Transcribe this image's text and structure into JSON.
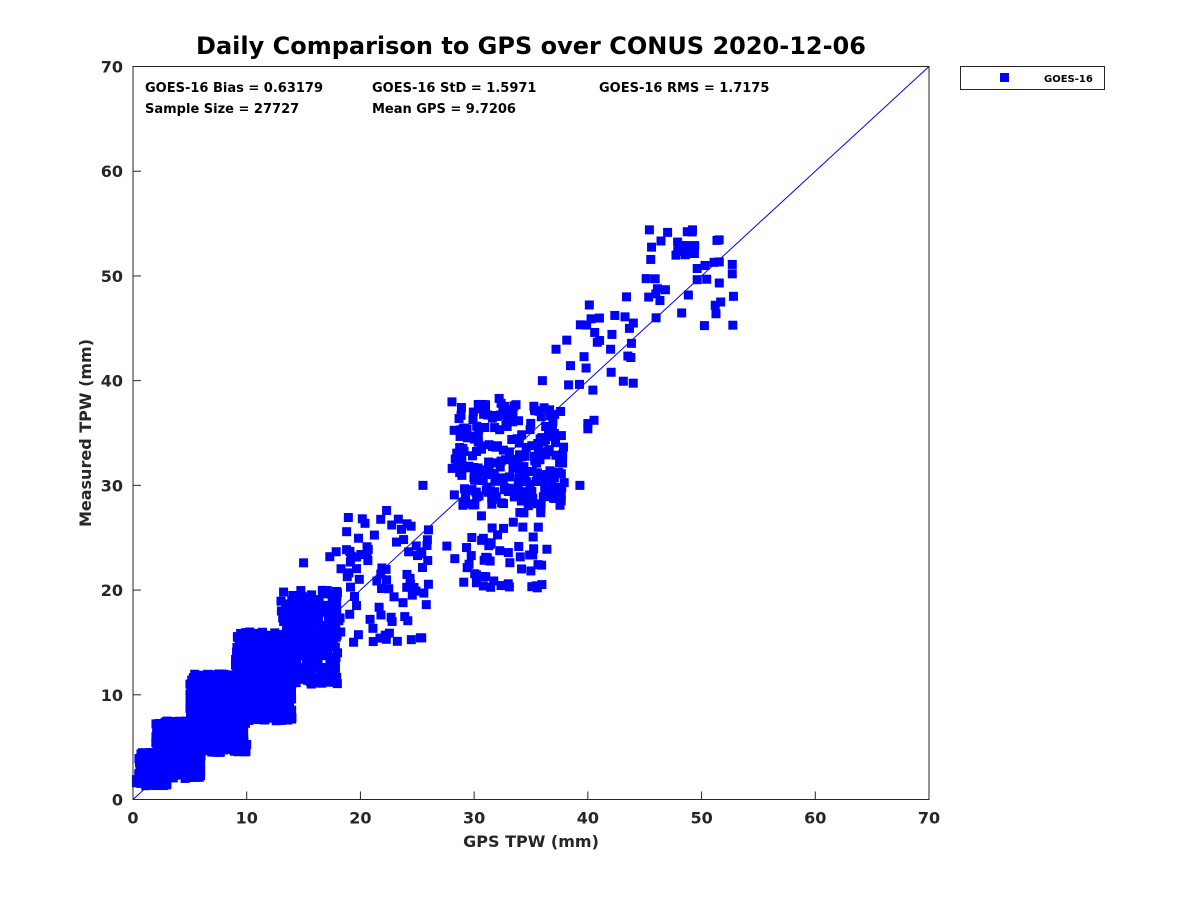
{
  "chart_data": {
    "type": "scatter",
    "title": "Daily Comparison to GPS over CONUS 2020-12-06",
    "xlabel": "GPS TPW (mm)",
    "ylabel": "Measured TPW (mm)",
    "xlim": [
      0,
      70
    ],
    "ylim": [
      0,
      70
    ],
    "xticks": [
      0,
      10,
      20,
      30,
      40,
      50,
      60,
      70
    ],
    "yticks": [
      0,
      10,
      20,
      30,
      40,
      50,
      60,
      70
    ],
    "xtick_labels": [
      "0",
      "10",
      "20",
      "30",
      "40",
      "50",
      "60",
      "70"
    ],
    "ytick_labels": [
      "0",
      "10",
      "20",
      "30",
      "40",
      "50",
      "60",
      "70"
    ],
    "grid": false,
    "legend_position": "outside-top-right",
    "marker_color": "#0000ff",
    "reference_line": {
      "type": "one-to-one",
      "from": [
        0,
        0
      ],
      "to": [
        70,
        70
      ],
      "color": "#0000ff"
    },
    "annotations": {
      "bias": "GOES-16 Bias = 0.63179",
      "std": "GOES-16 StD = 1.5971",
      "rms": "GOES-16 RMS = 1.7175",
      "sample_size": "Sample Size = 27727",
      "mean_gps": "Mean GPS = 9.7206"
    },
    "series": [
      {
        "name": "GOES-16",
        "color": "#0000ff",
        "sample_size": 27727,
        "clusters": [
          {
            "x_range": [
              0.5,
              3
            ],
            "y_range": [
              1.3,
              4.5
            ],
            "n": 260
          },
          {
            "x_range": [
              2,
              6
            ],
            "y_range": [
              2,
              7.5
            ],
            "n": 520
          },
          {
            "x_range": [
              5,
              10
            ],
            "y_range": [
              4.5,
              12
            ],
            "n": 760
          },
          {
            "x_range": [
              9,
              14
            ],
            "y_range": [
              7.5,
              16
            ],
            "n": 520
          },
          {
            "x_range": [
              13,
              18
            ],
            "y_range": [
              11,
              20
            ],
            "n": 300
          },
          {
            "x_range": [
              17,
              26
            ],
            "y_range": [
              15,
              27
            ],
            "n": 90
          },
          {
            "x_range": [
              28,
              38
            ],
            "y_range": [
              28,
              38
            ],
            "n": 230
          },
          {
            "x_range": [
              29,
              36
            ],
            "y_range": [
              20,
              30
            ],
            "n": 60
          },
          {
            "x_range": [
              38,
              44
            ],
            "y_range": [
              36,
              48
            ],
            "n": 25
          },
          {
            "x_range": [
              45,
              53
            ],
            "y_range": [
              45,
              54.5
            ],
            "n": 35
          }
        ],
        "points": [
          [
            49.2,
            54.4
          ],
          [
            48,
            52.9
          ],
          [
            48.7,
            52.9
          ],
          [
            49.4,
            52.9
          ],
          [
            52.7,
            51.1
          ],
          [
            51.1,
            51.3
          ],
          [
            50.3,
            51.0
          ],
          [
            52.7,
            50.2
          ],
          [
            51.2,
            47.2
          ],
          [
            43.4,
            48.0
          ],
          [
            40.6,
            44.6
          ],
          [
            37.2,
            43.0
          ],
          [
            32.2,
            38.3
          ],
          [
            31.0,
            37.7
          ],
          [
            36.0,
            40.0
          ],
          [
            33.0,
            20.6
          ],
          [
            33.1,
            20.3
          ],
          [
            36.4,
            23.9
          ],
          [
            37.7,
            29.8
          ],
          [
            39.3,
            30.0
          ],
          [
            40.0,
            35.9
          ],
          [
            40.0,
            35.4
          ],
          [
            27.6,
            24.2
          ],
          [
            22.7,
            17.4
          ],
          [
            22.3,
            27.6
          ],
          [
            15.0,
            22.6
          ],
          [
            17.3,
            11.8
          ],
          [
            0.3,
            1.9
          ],
          [
            0.3,
            1.6
          ],
          [
            42.0,
            43.0
          ],
          [
            44.0,
            45.5
          ],
          [
            46.0,
            46.0
          ],
          [
            25.5,
            30.0
          ],
          [
            28.3,
            23.0
          ],
          [
            30.2,
            20.7
          ]
        ]
      }
    ]
  }
}
